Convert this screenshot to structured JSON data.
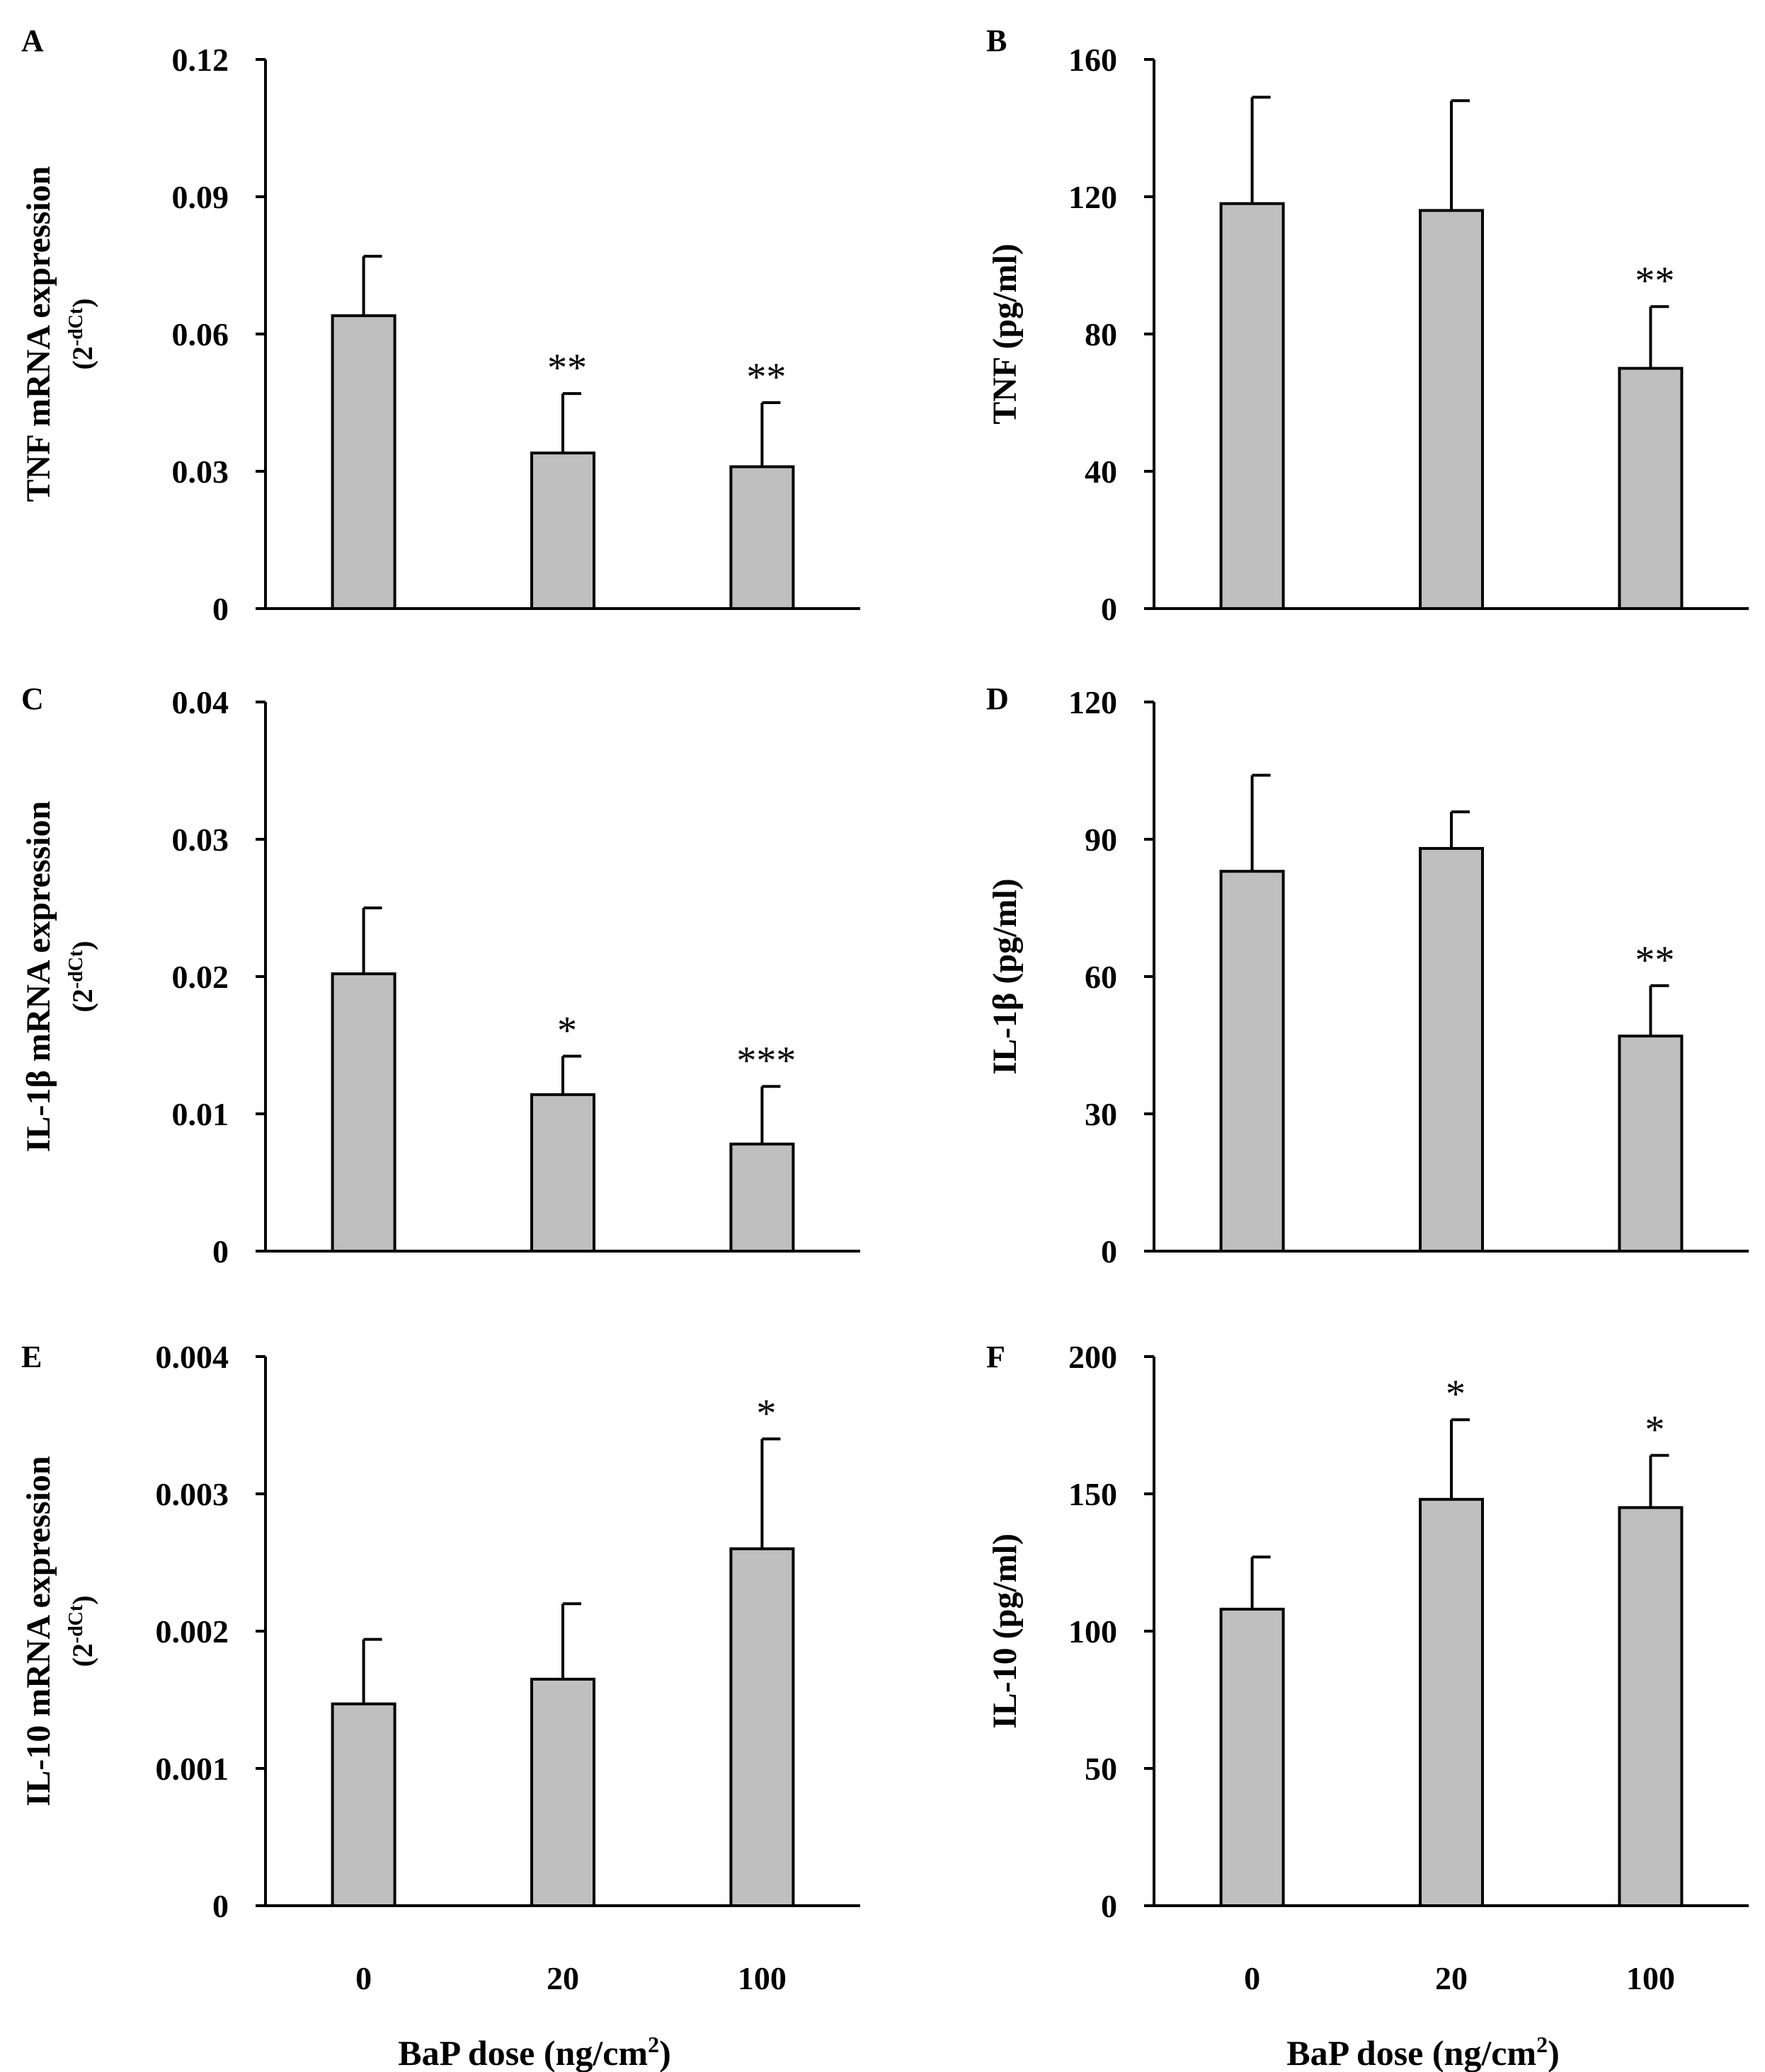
{
  "figure": {
    "xlabel": "BaP dose (ng/cm",
    "xlabel_sup": "2",
    "xlabel_end": ")",
    "colors": {
      "bar_fill": "#bfbfbf",
      "outline": "#000000"
    }
  },
  "chart_data": [
    {
      "panel": "A",
      "type": "bar",
      "categories": [
        "0",
        "20",
        "100"
      ],
      "values": [
        0.064,
        0.034,
        0.031
      ],
      "errors": [
        0.013,
        0.013,
        0.014
      ],
      "significance": [
        "",
        "**",
        "**"
      ],
      "ylim": [
        0,
        0.12
      ],
      "yticks": [
        0,
        0.03,
        0.06,
        0.09,
        0.12
      ],
      "ytick_labels": [
        "0",
        "0.03",
        "0.06",
        "0.09",
        "0.12"
      ],
      "ylabel": "TNF mRNA expression",
      "ylabel_sub": "(2",
      "ylabel_sup": "-dCt",
      "ylabel_sub_end": ")",
      "xlabel": "",
      "show_xticks": false
    },
    {
      "panel": "B",
      "type": "bar",
      "categories": [
        "0",
        "20",
        "100"
      ],
      "values": [
        118,
        116,
        70
      ],
      "errors": [
        31,
        32,
        18
      ],
      "significance": [
        "",
        "",
        "**"
      ],
      "ylim": [
        0,
        160
      ],
      "yticks": [
        0,
        40,
        80,
        120,
        160
      ],
      "ytick_labels": [
        "0",
        "40",
        "80",
        "120",
        "160"
      ],
      "ylabel": "TNF (pg/ml)",
      "xlabel": "",
      "show_xticks": false
    },
    {
      "panel": "C",
      "type": "bar",
      "categories": [
        "0",
        "20",
        "100"
      ],
      "values": [
        0.0202,
        0.0114,
        0.0078
      ],
      "errors": [
        0.0048,
        0.0028,
        0.0042
      ],
      "significance": [
        "",
        "*",
        "***"
      ],
      "ylim": [
        0,
        0.04
      ],
      "yticks": [
        0,
        0.01,
        0.02,
        0.03,
        0.04
      ],
      "ytick_labels": [
        "0",
        "0.01",
        "0.02",
        "0.03",
        "0.04"
      ],
      "ylabel": "IL-1β mRNA expression",
      "ylabel_sub": "(2",
      "ylabel_sup": "-dCt",
      "ylabel_sub_end": ")",
      "xlabel": "",
      "show_xticks": false
    },
    {
      "panel": "D",
      "type": "bar",
      "categories": [
        "0",
        "20",
        "100"
      ],
      "values": [
        83,
        88,
        47
      ],
      "errors": [
        21,
        8,
        11
      ],
      "significance": [
        "",
        "",
        "**"
      ],
      "ylim": [
        0,
        120
      ],
      "yticks": [
        0,
        30,
        60,
        90,
        120
      ],
      "ytick_labels": [
        "0",
        "30",
        "60",
        "90",
        "120"
      ],
      "ylabel": "IL-1β (pg/ml)",
      "xlabel": "",
      "show_xticks": false
    },
    {
      "panel": "E",
      "type": "bar",
      "categories": [
        "0",
        "20",
        "100"
      ],
      "values": [
        0.00147,
        0.00165,
        0.0026
      ],
      "errors": [
        0.00047,
        0.00055,
        0.0008
      ],
      "significance": [
        "",
        "",
        "*"
      ],
      "ylim": [
        0,
        0.004
      ],
      "yticks": [
        0,
        0.001,
        0.002,
        0.003,
        0.004
      ],
      "ytick_labels": [
        "0",
        "0.001",
        "0.002",
        "0.003",
        "0.004"
      ],
      "ylabel": "IL-10 mRNA expression",
      "ylabel_sub": "(2",
      "ylabel_sup": "-dCt",
      "ylabel_sub_end": ")",
      "xlabel": "BaP dose (ng/cm²)",
      "show_xticks": true
    },
    {
      "panel": "F",
      "type": "bar",
      "categories": [
        "0",
        "20",
        "100"
      ],
      "values": [
        108,
        148,
        145
      ],
      "errors": [
        19,
        29,
        19
      ],
      "significance": [
        "",
        "*",
        "*"
      ],
      "ylim": [
        0,
        200
      ],
      "yticks": [
        0,
        50,
        100,
        150,
        200
      ],
      "ytick_labels": [
        "0",
        "50",
        "100",
        "150",
        "200"
      ],
      "ylabel": "IL-10 (pg/ml)",
      "xlabel": "BaP dose (ng/cm²)",
      "show_xticks": true
    }
  ]
}
